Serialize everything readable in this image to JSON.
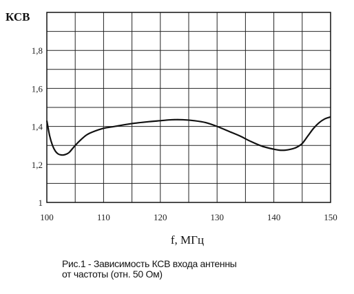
{
  "chart_data": {
    "type": "line",
    "title": "",
    "ylabel": "КСВ",
    "xlabel": "f, МГц",
    "xlim": [
      100,
      150
    ],
    "ylim": [
      1.0,
      2.0
    ],
    "grid": true,
    "x_major_ticks": [
      100,
      110,
      120,
      130,
      140,
      150
    ],
    "x_grid_step": 5,
    "y_tick_labels": [
      "1",
      "1,2",
      "1,4",
      "1,6",
      "1,8"
    ],
    "y_grid_step": 0.1,
    "series": [
      {
        "color": "#111111",
        "x": [
          100,
          100.5,
          101,
          101.5,
          102,
          102.5,
          103,
          103.5,
          104,
          105,
          106,
          107,
          108,
          110,
          112,
          115,
          118,
          120,
          122,
          124,
          126,
          128,
          130,
          132,
          134,
          136,
          138,
          140,
          141,
          142,
          143,
          144,
          145,
          146,
          147,
          148,
          149,
          150
        ],
        "y": [
          1.43,
          1.35,
          1.3,
          1.27,
          1.255,
          1.25,
          1.25,
          1.255,
          1.265,
          1.3,
          1.33,
          1.355,
          1.37,
          1.39,
          1.4,
          1.415,
          1.425,
          1.43,
          1.435,
          1.435,
          1.43,
          1.42,
          1.4,
          1.375,
          1.35,
          1.32,
          1.295,
          1.28,
          1.275,
          1.275,
          1.28,
          1.29,
          1.31,
          1.35,
          1.39,
          1.42,
          1.44,
          1.45
        ]
      }
    ]
  },
  "caption": {
    "line1": "Рис.1 - Зависимость КСВ входа антенны",
    "line2": "от частоты (отн. 50 Ом)"
  }
}
